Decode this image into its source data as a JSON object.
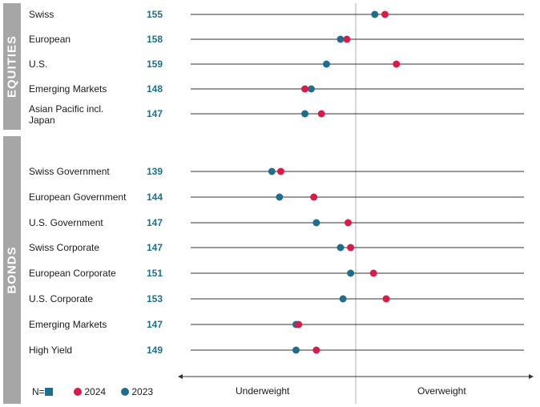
{
  "sections": [
    {
      "name": "EQUITIES"
    },
    {
      "name": "BONDS"
    }
  ],
  "colors": {
    "y2024": "#d81b48",
    "y2023": "#1f6e8c",
    "bar": "#a6a6a6"
  },
  "chart_data": {
    "type": "scatter",
    "title": "",
    "x_scale_note": "relative position between Underweight and Overweight",
    "axis": {
      "left_label": "Underweight",
      "right_label": "Overweight"
    },
    "legend": {
      "n_label": "N=",
      "items": [
        {
          "name": "2024"
        },
        {
          "name": "2023"
        }
      ]
    },
    "categories": [
      "Swiss",
      "European",
      "U.S.",
      "Emerging Markets",
      "Asian Pacific incl. Japan",
      "Swiss Government",
      "European Government",
      "U.S. Government",
      "Swiss Corporate",
      "European Corporate",
      "U.S. Corporate",
      "Emerging Markets",
      "High Yield"
    ],
    "n": [
      155,
      158,
      159,
      148,
      147,
      139,
      144,
      147,
      147,
      151,
      153,
      147,
      149
    ],
    "series": [
      {
        "name": "2024",
        "values": [
          0.115,
          -0.035,
          0.16,
          -0.2,
          -0.135,
          -0.295,
          -0.165,
          -0.03,
          -0.02,
          0.07,
          0.12,
          -0.225,
          -0.155
        ]
      },
      {
        "name": "2023",
        "values": [
          0.075,
          -0.06,
          -0.115,
          -0.175,
          -0.2,
          -0.33,
          -0.3,
          -0.155,
          -0.06,
          -0.02,
          -0.05,
          -0.235,
          -0.235
        ]
      }
    ],
    "xlim": [
      -0.7,
      0.7
    ]
  },
  "rows": [
    {
      "label": "Swiss",
      "n": "155"
    },
    {
      "label": "European",
      "n": "158"
    },
    {
      "label": "U.S.",
      "n": "159"
    },
    {
      "label": "Emerging Markets",
      "n": "148"
    },
    {
      "label": "Asian Pacific incl.\nJapan",
      "n": "147"
    },
    {
      "label": "Swiss Government",
      "n": "139"
    },
    {
      "label": "European Government",
      "n": "144"
    },
    {
      "label": "U.S. Government",
      "n": "147"
    },
    {
      "label": "Swiss Corporate",
      "n": "147"
    },
    {
      "label": "European Corporate",
      "n": "151"
    },
    {
      "label": "U.S. Corporate",
      "n": "153"
    },
    {
      "label": "Emerging Markets",
      "n": "147"
    },
    {
      "label": "High Yield",
      "n": "149"
    }
  ]
}
